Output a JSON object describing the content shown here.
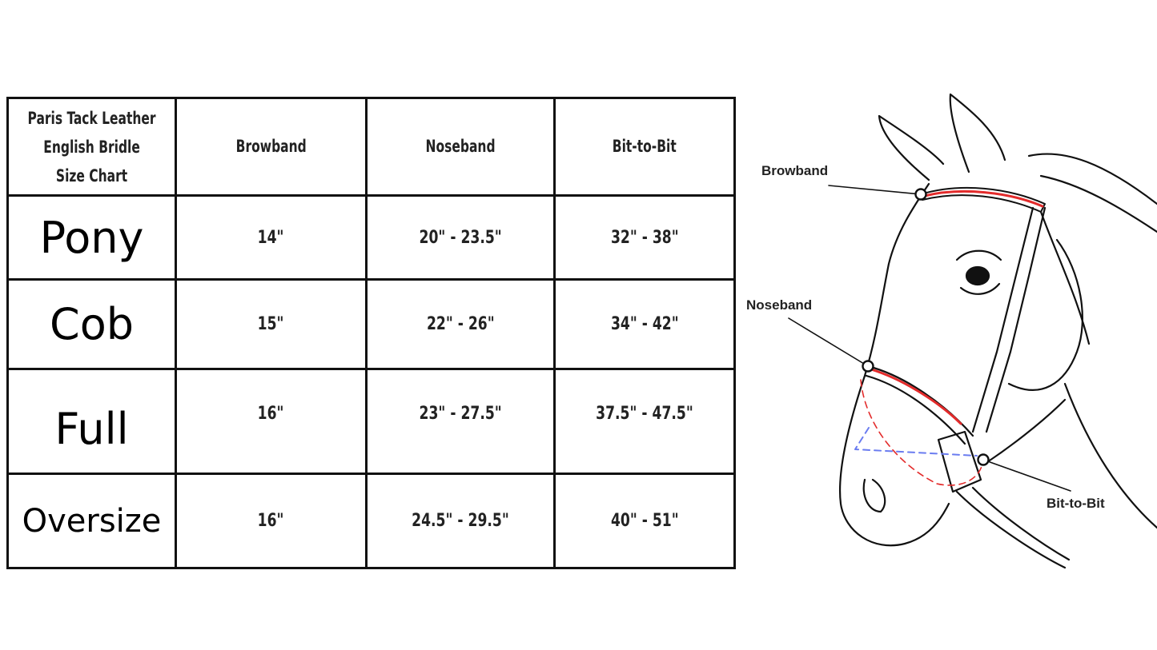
{
  "table": {
    "title_lines": [
      "Paris Tack Leather",
      "English Bridle",
      "Size Chart"
    ],
    "columns": [
      "Browband",
      "Noseband",
      "Bit-to-Bit"
    ],
    "rows": [
      {
        "size": "Pony",
        "browband": "14\"",
        "noseband": "20\" - 23.5\"",
        "bit_to_bit": "32\" - 38\""
      },
      {
        "size": "Cob",
        "browband": "15\"",
        "noseband": "22\" - 26\"",
        "bit_to_bit": "34\" - 42\""
      },
      {
        "size": "Full",
        "browband": "16\"",
        "noseband": "23\" - 27.5\"",
        "bit_to_bit": "37.5\" - 47.5\""
      },
      {
        "size": "Oversize",
        "browband": "16\"",
        "noseband": "24.5\" - 29.5\"",
        "bit_to_bit": "40\" - 51\""
      }
    ]
  },
  "diagram": {
    "labels": {
      "browband": "Browband",
      "noseband": "Noseband",
      "bit_to_bit": "Bit-to-Bit"
    },
    "colors": {
      "measure_red": "#e32b2b",
      "measure_blue": "#6a7cf0",
      "outline": "#111111"
    }
  }
}
